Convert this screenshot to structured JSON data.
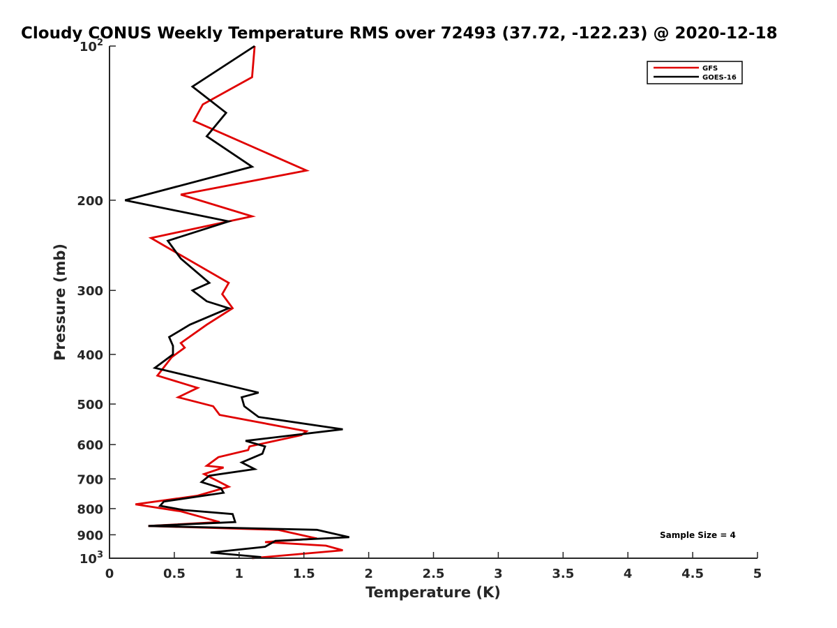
{
  "chart_data": {
    "type": "line",
    "title": "Cloudy CONUS Weekly Temperature RMS over 72493 (37.72, -122.23) @ 2020-12-18",
    "xlabel": "Temperature (K)",
    "ylabel": "Pressure (mb)",
    "xlim": [
      0,
      5
    ],
    "ylim": [
      100,
      1000
    ],
    "yscale": "log",
    "y_reversed": true,
    "grid": false,
    "legend_position": "top-right",
    "x_ticks": [
      {
        "value": 0,
        "label": "0"
      },
      {
        "value": 0.5,
        "label": "0.5"
      },
      {
        "value": 1,
        "label": "1"
      },
      {
        "value": 1.5,
        "label": "1.5"
      },
      {
        "value": 2,
        "label": "2"
      },
      {
        "value": 2.5,
        "label": "2.5"
      },
      {
        "value": 3,
        "label": "3"
      },
      {
        "value": 3.5,
        "label": "3.5"
      },
      {
        "value": 4,
        "label": "4"
      },
      {
        "value": 4.5,
        "label": "4.5"
      },
      {
        "value": 5,
        "label": "5"
      }
    ],
    "y_ticks": [
      {
        "value": 100,
        "base": "10",
        "exp": "2"
      },
      {
        "value": 200,
        "label": "200"
      },
      {
        "value": 300,
        "label": "300"
      },
      {
        "value": 400,
        "label": "400"
      },
      {
        "value": 500,
        "label": "500"
      },
      {
        "value": 600,
        "label": "600"
      },
      {
        "value": 700,
        "label": "700"
      },
      {
        "value": 800,
        "label": "800"
      },
      {
        "value": 900,
        "label": "900"
      },
      {
        "value": 1000,
        "base": "10",
        "exp": "3"
      }
    ],
    "series": [
      {
        "name": "GFS",
        "color": "#e00000",
        "points": [
          [
            1.12,
            100
          ],
          [
            1.1,
            115
          ],
          [
            0.72,
            130
          ],
          [
            0.65,
            140
          ],
          [
            1.52,
            175
          ],
          [
            0.55,
            195
          ],
          [
            1.1,
            215
          ],
          [
            0.32,
            237
          ],
          [
            0.92,
            290
          ],
          [
            0.87,
            305
          ],
          [
            0.95,
            325
          ],
          [
            0.75,
            350
          ],
          [
            0.55,
            380
          ],
          [
            0.58,
            388
          ],
          [
            0.48,
            405
          ],
          [
            0.37,
            440
          ],
          [
            0.68,
            465
          ],
          [
            0.53,
            485
          ],
          [
            0.8,
            505
          ],
          [
            0.85,
            525
          ],
          [
            1.52,
            565
          ],
          [
            1.48,
            575
          ],
          [
            1.08,
            605
          ],
          [
            1.07,
            615
          ],
          [
            0.84,
            635
          ],
          [
            0.75,
            660
          ],
          [
            0.88,
            665
          ],
          [
            0.73,
            685
          ],
          [
            0.92,
            725
          ],
          [
            0.68,
            755
          ],
          [
            0.2,
            785
          ],
          [
            0.55,
            810
          ],
          [
            0.85,
            850
          ],
          [
            0.3,
            865
          ],
          [
            1.3,
            880
          ],
          [
            1.6,
            915
          ],
          [
            1.2,
            930
          ],
          [
            1.67,
            945
          ],
          [
            1.8,
            965
          ],
          [
            1.1,
            1000
          ]
        ]
      },
      {
        "name": "GOES-16",
        "color": "#000000",
        "points": [
          [
            1.12,
            100
          ],
          [
            0.64,
            120
          ],
          [
            0.9,
            135
          ],
          [
            0.75,
            150
          ],
          [
            1.1,
            172
          ],
          [
            0.12,
            200
          ],
          [
            0.92,
            220
          ],
          [
            0.45,
            240
          ],
          [
            0.55,
            260
          ],
          [
            0.77,
            290
          ],
          [
            0.64,
            300
          ],
          [
            0.75,
            315
          ],
          [
            0.92,
            325
          ],
          [
            0.62,
            350
          ],
          [
            0.46,
            370
          ],
          [
            0.49,
            385
          ],
          [
            0.49,
            400
          ],
          [
            0.35,
            425
          ],
          [
            1.15,
            475
          ],
          [
            1.02,
            485
          ],
          [
            1.04,
            505
          ],
          [
            1.15,
            530
          ],
          [
            1.8,
            560
          ],
          [
            1.05,
            590
          ],
          [
            1.2,
            605
          ],
          [
            1.18,
            625
          ],
          [
            1.02,
            650
          ],
          [
            1.12,
            670
          ],
          [
            0.77,
            690
          ],
          [
            0.71,
            710
          ],
          [
            0.86,
            730
          ],
          [
            0.88,
            745
          ],
          [
            0.42,
            775
          ],
          [
            0.39,
            790
          ],
          [
            0.57,
            805
          ],
          [
            0.95,
            820
          ],
          [
            0.97,
            850
          ],
          [
            0.3,
            865
          ],
          [
            1.6,
            880
          ],
          [
            1.85,
            910
          ],
          [
            1.28,
            925
          ],
          [
            1.2,
            950
          ],
          [
            0.78,
            975
          ],
          [
            1.17,
            995
          ]
        ]
      }
    ],
    "annotations": [
      {
        "text": "Sample Size = 4"
      }
    ]
  }
}
